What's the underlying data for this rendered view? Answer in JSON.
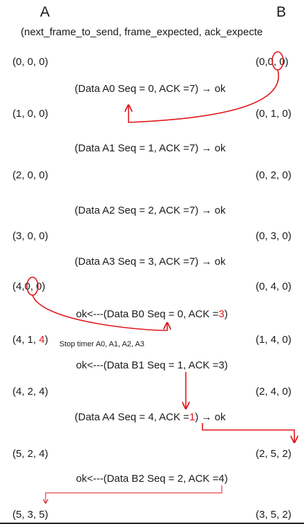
{
  "header": {
    "left": "A",
    "right": "B",
    "subtitle": "(next_frame_to_send, frame_expected, ack_expecte"
  },
  "colors": {
    "accent": "#e0161b",
    "text": "#1a1a1a"
  },
  "states_left": [
    "(0, 0, 0)",
    "(1, 0, 0)",
    "(2, 0, 0)",
    "(3, 0, 0)",
    "(4, 0, 0)",
    "(4, 1, 4)",
    "(4, 2, 4)",
    "(5, 2, 4)",
    "(5, 3, 5)"
  ],
  "states_right": [
    "(0, 0, 0)",
    "(0, 1, 0)",
    "(0, 2, 0)",
    "(0, 3, 0)",
    "(0, 4, 0)",
    "(1, 4, 0)",
    "(2, 4, 0)",
    "(2, 5, 2)",
    "(3, 5, 2)"
  ],
  "state_parts": {
    "l4_pre": "(4,",
    "l4_mid": "0",
    "l4_post": ", 0)",
    "r0_pre": "(0,",
    "r0_mid": "0",
    "r0_post": ", 0)",
    "l5_pre": "(4, 1,",
    "l5_red": "4",
    "l5_post": ")"
  },
  "messages": {
    "m0": "(Data A0 Seq = 0, ACK =7) → ok",
    "m1": "(Data A1 Seq = 1, ACK =7) → ok",
    "m2": "(Data A2 Seq = 2, ACK =7) → ok",
    "m3": "(Data A3 Seq = 3, ACK =7) → ok",
    "m4_pre": "ok<---(Data B0 Seq = 0, ACK =",
    "m4_red": "3",
    "m4_post": ")",
    "m5": "ok<---(Data B1 Seq = 1, ACK =3)",
    "m6_pre": "(Data A4 Seq = 4, ACK =",
    "m6_red": "1",
    "m6_post": ") → ok",
    "m7": "ok<---(Data B2 Seq = 2, ACK =4)"
  },
  "note": "Stop timer A0, A1, A2, A3"
}
